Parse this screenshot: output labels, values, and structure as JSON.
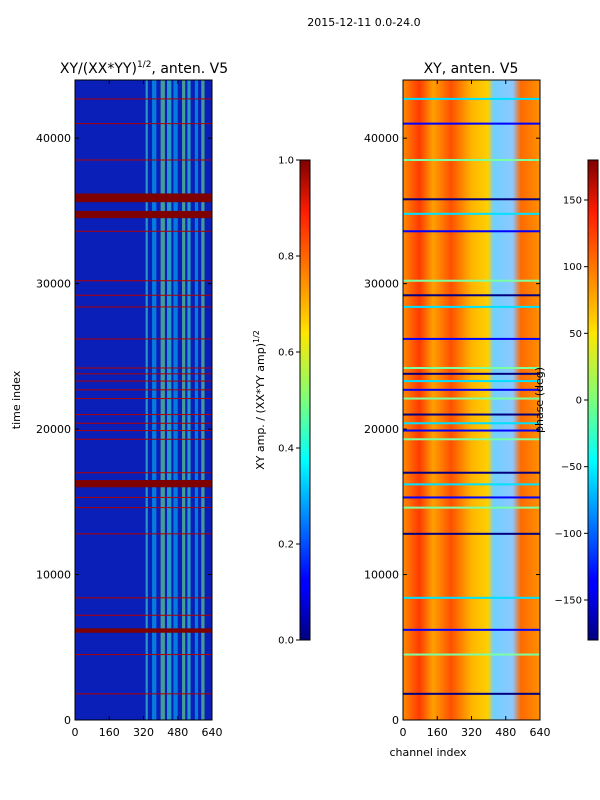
{
  "figure": {
    "suptitle": "2015-12-11 0.0-24.0"
  },
  "chart_data": [
    {
      "type": "heatmap",
      "title": "XY/(XX*YY)^1/2, anten. V5",
      "title_main": "XY/(XX*YY)",
      "title_sup": "1/2",
      "title_tail": ", anten. V5",
      "xlabel": "",
      "ylabel": "time index",
      "xlim": [
        0,
        640
      ],
      "ylim": [
        0,
        44000
      ],
      "xticks": [
        0,
        160,
        320,
        480,
        640
      ],
      "yticks": [
        0,
        10000,
        20000,
        30000,
        40000
      ],
      "colorbar": {
        "label_main": "XY amp. / (XX*YY amp)",
        "label_sup": "1/2",
        "range": [
          0.0,
          1.0
        ],
        "ticks": [
          "0.0",
          "0.2",
          "0.4",
          "0.6",
          "0.8",
          "1.0"
        ],
        "colormap": "jet"
      },
      "band_columns": [
        [
          330,
          340
        ],
        [
          360,
          380
        ],
        [
          400,
          420
        ],
        [
          430,
          450
        ],
        [
          460,
          480
        ],
        [
          500,
          515
        ],
        [
          525,
          540
        ],
        [
          560,
          575
        ],
        [
          590,
          605
        ]
      ],
      "saturated_rows": [
        [
          6000,
          6300
        ],
        [
          16000,
          16500
        ],
        [
          34500,
          35000
        ],
        [
          35600,
          36200
        ]
      ],
      "flag_rows": [
        1800,
        4500,
        7200,
        8400,
        12800,
        14600,
        15300,
        17000,
        19300,
        19900,
        20400,
        21000,
        22100,
        22700,
        23300,
        23800,
        24200,
        26200,
        28400,
        29200,
        30200,
        33600,
        38500,
        41000,
        42700
      ]
    },
    {
      "type": "heatmap",
      "title": "XY, anten. V5",
      "xlabel": "channel index",
      "ylabel": "",
      "xlim": [
        0,
        640
      ],
      "ylim": [
        0,
        44000
      ],
      "xticks": [
        0,
        160,
        320,
        480,
        640
      ],
      "yticks": [
        0,
        10000,
        20000,
        30000,
        40000
      ],
      "colorbar": {
        "label": "phase (deg)",
        "range": [
          -180,
          180
        ],
        "ticks": [
          "−150",
          "−100",
          "−50",
          "0",
          "50",
          "100",
          "150"
        ],
        "tick_values": [
          -150,
          -100,
          -50,
          0,
          50,
          100,
          150
        ],
        "colormap": "jet"
      },
      "flag_rows": [
        1800,
        4500,
        6200,
        8400,
        12800,
        14600,
        15300,
        16200,
        17000,
        19300,
        19900,
        20400,
        21000,
        22100,
        22700,
        23300,
        23800,
        24200,
        26200,
        28400,
        29200,
        30200,
        33600,
        34800,
        35800,
        38500,
        41000,
        42700
      ]
    }
  ]
}
